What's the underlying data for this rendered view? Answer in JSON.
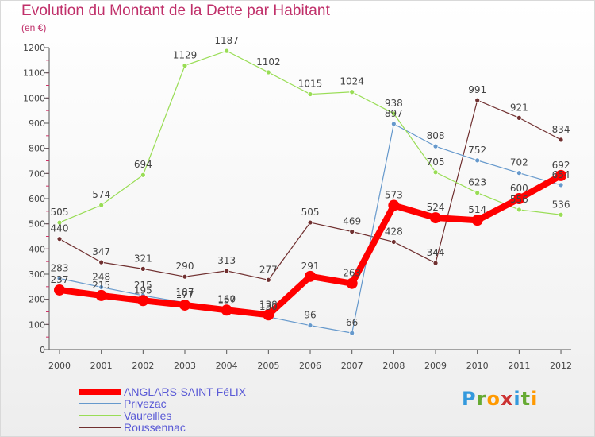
{
  "header": {
    "title": "Evolution du Montant de la Dette par Habitant",
    "unit": "(en €)"
  },
  "chart_data": {
    "type": "line",
    "title": "Evolution du Montant de la Dette par Habitant",
    "subtitle": "(en €)",
    "x": [
      "2000",
      "2001",
      "2002",
      "2003",
      "2004",
      "2005",
      "2006",
      "2007",
      "2008",
      "2009",
      "2010",
      "2011",
      "2012"
    ],
    "ylim": [
      0,
      1200
    ],
    "yticks": [
      0,
      100,
      200,
      300,
      400,
      500,
      600,
      700,
      800,
      900,
      1000,
      1100,
      1200
    ],
    "grid": false,
    "legend": "bottom-left",
    "series": [
      {
        "name": "ANGLARS-SAINT-FéLIX",
        "color": "#ff0000",
        "values": [
          237,
          215,
          195,
          177,
          157,
          138,
          291,
          263,
          573,
          524,
          514,
          600,
          692
        ]
      },
      {
        "name": "Privezac",
        "color": "#6699cc",
        "values": [
          283,
          248,
          215,
          187,
          160,
          130,
          96,
          66,
          897,
          808,
          752,
          702,
          654
        ]
      },
      {
        "name": "Vaureilles",
        "color": "#99dd55",
        "values": [
          505,
          574,
          694,
          1129,
          1187,
          1102,
          1015,
          1024,
          938,
          705,
          623,
          556,
          536
        ]
      },
      {
        "name": "Roussennac",
        "color": "#703030",
        "values": [
          440,
          347,
          321,
          290,
          313,
          277,
          505,
          469,
          428,
          344,
          991,
          921,
          834
        ]
      }
    ]
  },
  "legend": {
    "items": [
      {
        "label": "ANGLARS-SAINT-FéLIX",
        "color": "#ff0000"
      },
      {
        "label": "Privezac",
        "color": "#6699cc"
      },
      {
        "label": "Vaureilles",
        "color": "#99dd55"
      },
      {
        "label": "Roussennac",
        "color": "#703030"
      }
    ]
  },
  "logo": {
    "letters": [
      "P",
      "r",
      "o",
      "x",
      "i",
      "t",
      "i"
    ],
    "colors": [
      "#3399dd",
      "#66aa33",
      "#ff9900",
      "#cc3333",
      "#3399dd",
      "#66aa33",
      "#ff9900"
    ]
  }
}
